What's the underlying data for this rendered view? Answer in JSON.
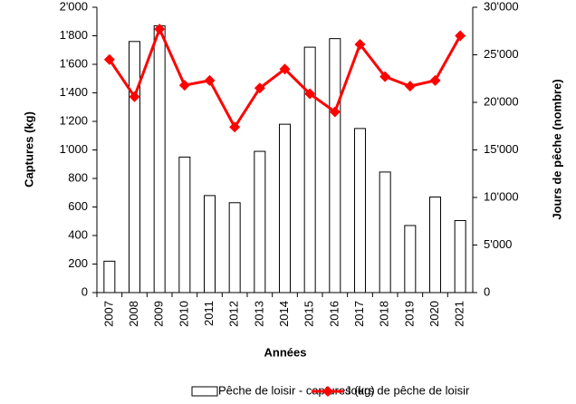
{
  "chart_data": {
    "type": "bar",
    "categories": [
      "2007",
      "2008",
      "2009",
      "2010",
      "2011",
      "2012",
      "2013",
      "2014",
      "2015",
      "2016",
      "2017",
      "2018",
      "2019",
      "2020",
      "2021"
    ],
    "series": [
      {
        "name": "Pêche de loisir - captures (kg)",
        "type": "bar",
        "color": "#ffffff",
        "values": [
          220,
          1760,
          1870,
          950,
          680,
          630,
          990,
          1180,
          1720,
          1780,
          1150,
          845,
          470,
          670,
          505
        ]
      },
      {
        "name": "Jours de pêche de loisir",
        "type": "line",
        "axis": "y2",
        "color": "#ff0000",
        "values": [
          24500,
          20600,
          27700,
          21800,
          22300,
          17400,
          21500,
          23500,
          20900,
          19000,
          26100,
          22700,
          21700,
          22300,
          27000
        ]
      }
    ],
    "xlabel": "Années",
    "ylabel": "Captures (kg)",
    "y2label": "Jours de pêche (nombre)",
    "ylim": [
      0,
      2000
    ],
    "yticks": [
      0,
      200,
      400,
      600,
      800,
      {
        "value": 1000,
        "label": "1'000"
      },
      {
        "value": 1200,
        "label": "1'200"
      },
      {
        "value": 1400,
        "label": "1'400"
      },
      {
        "value": 1600,
        "label": "1'600"
      },
      {
        "value": 1800,
        "label": "1'800"
      },
      {
        "value": 2000,
        "label": "2'000"
      }
    ],
    "y2lim": [
      0,
      30000
    ],
    "y2ticks": [
      0,
      {
        "value": 5000,
        "label": "5'000"
      },
      {
        "value": 10000,
        "label": "10'000"
      },
      {
        "value": 15000,
        "label": "15'000"
      },
      {
        "value": 20000,
        "label": "20'000"
      },
      {
        "value": 25000,
        "label": "25'000"
      },
      {
        "value": 30000,
        "label": "30'000"
      }
    ],
    "legend": "bottom"
  }
}
